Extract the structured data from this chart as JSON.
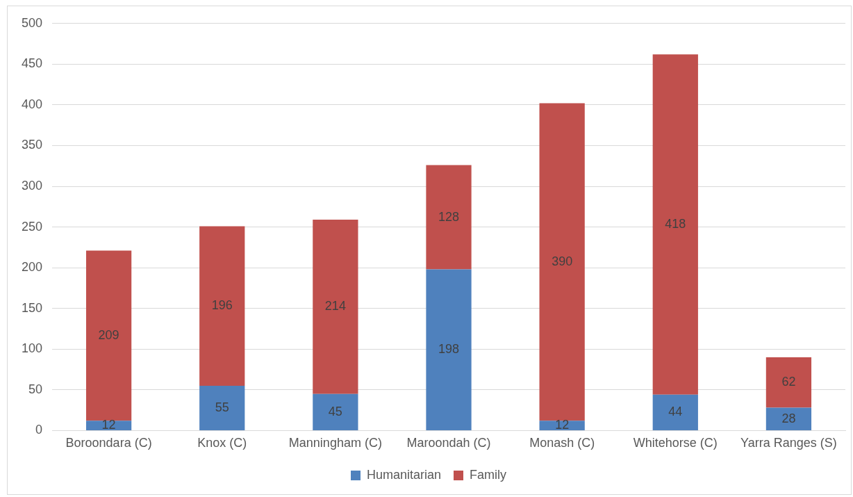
{
  "chart_data": {
    "type": "bar",
    "stacked": true,
    "categories": [
      "Boroondara (C)",
      "Knox (C)",
      "Manningham (C)",
      "Maroondah (C)",
      "Monash (C)",
      "Whitehorse (C)",
      "Yarra Ranges (S)"
    ],
    "series": [
      {
        "name": "Humanitarian",
        "color": "#4f81bd",
        "values": [
          12,
          55,
          45,
          198,
          12,
          44,
          28
        ]
      },
      {
        "name": "Family",
        "color": "#c0504d",
        "values": [
          209,
          196,
          214,
          128,
          390,
          418,
          62
        ]
      }
    ],
    "ylim": [
      0,
      500
    ],
    "yticks": [
      0,
      50,
      100,
      150,
      200,
      250,
      300,
      350,
      400,
      450,
      500
    ],
    "grid": "y",
    "legend": "bottom",
    "data_labels": true
  }
}
